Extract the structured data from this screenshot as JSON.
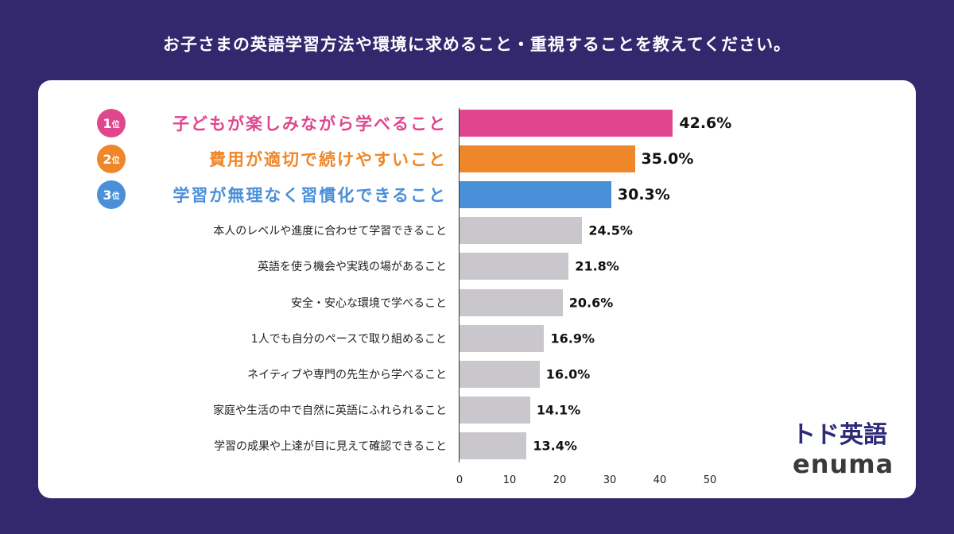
{
  "title": "お子さまの英語学習方法や環境に求めること・重視することを教えてください。",
  "chart_data": {
    "type": "bar",
    "orientation": "horizontal",
    "categories": [
      "子どもが楽しみながら学べること",
      "費用が適切で続けやすいこと",
      "学習が無理なく習慣化できること",
      "本人のレベルや進度に合わせて学習できること",
      "英語を使う機会や実践の場があること",
      "安全・安心な環境で学べること",
      "1人でも自分のペースで取り組めること",
      "ネイティブや専門の先生から学べること",
      "家庭や生活の中で自然に英語にふれられること",
      "学習の成果や上達が目に見えて確認できること"
    ],
    "values": [
      42.6,
      35.0,
      30.3,
      24.5,
      21.8,
      20.6,
      16.9,
      16.0,
      14.1,
      13.4
    ],
    "value_labels": [
      "42.6%",
      "35.0%",
      "30.3%",
      "24.5%",
      "21.8%",
      "20.6%",
      "16.9%",
      "16.0%",
      "14.1%",
      "13.4%"
    ],
    "ranks": [
      {
        "num": "1",
        "suffix": "位"
      },
      {
        "num": "2",
        "suffix": "位"
      },
      {
        "num": "3",
        "suffix": "位"
      }
    ],
    "colors": [
      "#e0468e",
      "#ef8629",
      "#4a90d9",
      "#c9c7cc"
    ],
    "xlim": [
      0,
      50
    ],
    "xticks": [
      "0",
      "10",
      "20",
      "30",
      "40",
      "50"
    ],
    "grid": false
  },
  "logo": {
    "brand": "トド英語",
    "company": "enuma"
  }
}
